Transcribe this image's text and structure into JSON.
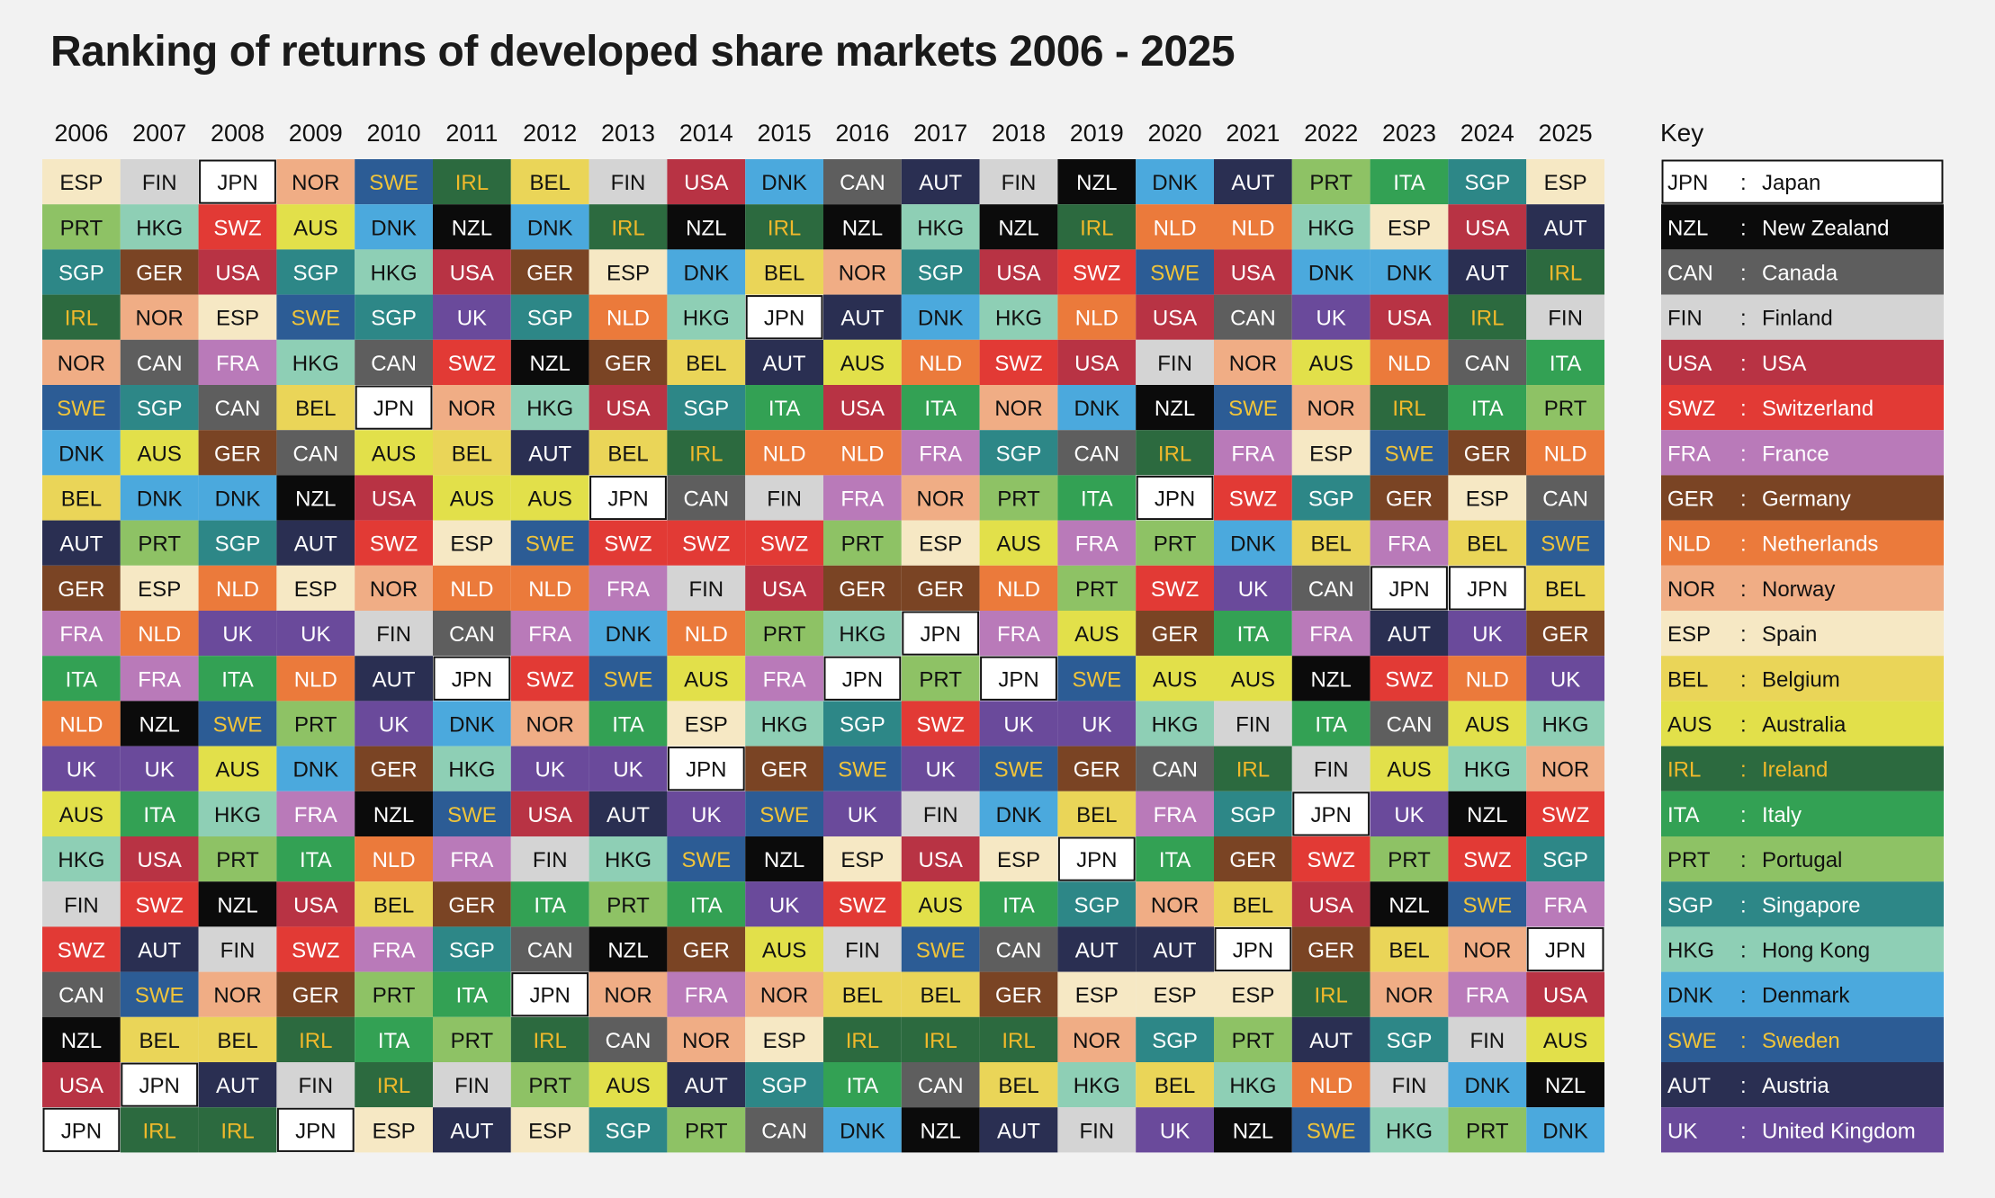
{
  "title": "Ranking of returns of developed share markets 2006 - 2025",
  "key_title": "Key",
  "chart_data": {
    "type": "table",
    "title": "Ranking of returns of developed share markets 2006 - 2025",
    "years": [
      "2006",
      "2007",
      "2008",
      "2009",
      "2010",
      "2011",
      "2012",
      "2013",
      "2014",
      "2015",
      "2016",
      "2017",
      "2018",
      "2019",
      "2020",
      "2021",
      "2022",
      "2023",
      "2024",
      "2025"
    ],
    "rankings": [
      [
        "ESP",
        "PRT",
        "SGP",
        "IRL",
        "NOR",
        "SWE",
        "DNK",
        "BEL",
        "AUT",
        "GER",
        "FRA",
        "ITA",
        "NLD",
        "UK",
        "AUS",
        "HKG",
        "FIN",
        "SWZ",
        "CAN",
        "NZL",
        "USA",
        "JPN"
      ],
      [
        "FIN",
        "HKG",
        "GER",
        "NOR",
        "CAN",
        "SGP",
        "AUS",
        "DNK",
        "PRT",
        "ESP",
        "NLD",
        "FRA",
        "NZL",
        "UK",
        "ITA",
        "USA",
        "SWZ",
        "AUT",
        "SWE",
        "BEL",
        "JPN",
        "IRL"
      ],
      [
        "JPN",
        "SWZ",
        "USA",
        "ESP",
        "FRA",
        "CAN",
        "GER",
        "DNK",
        "SGP",
        "NLD",
        "UK",
        "ITA",
        "SWE",
        "AUS",
        "HKG",
        "PRT",
        "NZL",
        "FIN",
        "NOR",
        "BEL",
        "AUT",
        "IRL"
      ],
      [
        "NOR",
        "AUS",
        "SGP",
        "SWE",
        "HKG",
        "BEL",
        "CAN",
        "NZL",
        "AUT",
        "ESP",
        "UK",
        "NLD",
        "PRT",
        "DNK",
        "FRA",
        "ITA",
        "USA",
        "SWZ",
        "GER",
        "IRL",
        "FIN",
        "JPN"
      ],
      [
        "SWE",
        "DNK",
        "HKG",
        "SGP",
        "CAN",
        "JPN",
        "AUS",
        "USA",
        "SWZ",
        "NOR",
        "FIN",
        "AUT",
        "UK",
        "GER",
        "NZL",
        "NLD",
        "BEL",
        "FRA",
        "PRT",
        "ITA",
        "IRL",
        "ESP"
      ],
      [
        "IRL",
        "NZL",
        "USA",
        "UK",
        "SWZ",
        "NOR",
        "BEL",
        "AUS",
        "ESP",
        "NLD",
        "CAN",
        "JPN",
        "DNK",
        "HKG",
        "SWE",
        "FRA",
        "GER",
        "SGP",
        "ITA",
        "PRT",
        "FIN",
        "AUT"
      ],
      [
        "BEL",
        "DNK",
        "GER",
        "SGP",
        "NZL",
        "HKG",
        "AUT",
        "AUS",
        "SWE",
        "NLD",
        "FRA",
        "SWZ",
        "NOR",
        "UK",
        "USA",
        "FIN",
        "ITA",
        "CAN",
        "JPN",
        "IRL",
        "PRT",
        "ESP"
      ],
      [
        "FIN",
        "IRL",
        "ESP",
        "NLD",
        "GER",
        "USA",
        "BEL",
        "JPN",
        "SWZ",
        "FRA",
        "DNK",
        "SWE",
        "ITA",
        "UK",
        "AUT",
        "HKG",
        "PRT",
        "NZL",
        "NOR",
        "CAN",
        "AUS",
        "SGP"
      ],
      [
        "USA",
        "NZL",
        "DNK",
        "HKG",
        "BEL",
        "SGP",
        "IRL",
        "CAN",
        "SWZ",
        "FIN",
        "NLD",
        "AUS",
        "ESP",
        "JPN",
        "UK",
        "SWE",
        "ITA",
        "GER",
        "FRA",
        "NOR",
        "AUT",
        "PRT"
      ],
      [
        "DNK",
        "IRL",
        "BEL",
        "JPN",
        "AUT",
        "ITA",
        "NLD",
        "FIN",
        "SWZ",
        "USA",
        "PRT",
        "FRA",
        "HKG",
        "GER",
        "SWE",
        "NZL",
        "UK",
        "AUS",
        "NOR",
        "ESP",
        "SGP",
        "CAN"
      ],
      [
        "CAN",
        "NZL",
        "NOR",
        "AUT",
        "AUS",
        "USA",
        "NLD",
        "FRA",
        "PRT",
        "GER",
        "HKG",
        "JPN",
        "SGP",
        "SWE",
        "UK",
        "ESP",
        "SWZ",
        "FIN",
        "BEL",
        "IRL",
        "ITA",
        "DNK"
      ],
      [
        "AUT",
        "HKG",
        "SGP",
        "DNK",
        "NLD",
        "ITA",
        "FRA",
        "NOR",
        "ESP",
        "GER",
        "JPN",
        "PRT",
        "SWZ",
        "UK",
        "FIN",
        "USA",
        "AUS",
        "SWE",
        "BEL",
        "IRL",
        "CAN",
        "NZL"
      ],
      [
        "FIN",
        "NZL",
        "USA",
        "HKG",
        "SWZ",
        "NOR",
        "SGP",
        "PRT",
        "AUS",
        "NLD",
        "FRA",
        "JPN",
        "UK",
        "SWE",
        "DNK",
        "ESP",
        "ITA",
        "CAN",
        "GER",
        "IRL",
        "BEL",
        "AUT"
      ],
      [
        "NZL",
        "IRL",
        "SWZ",
        "NLD",
        "USA",
        "DNK",
        "CAN",
        "ITA",
        "FRA",
        "PRT",
        "AUS",
        "SWE",
        "UK",
        "GER",
        "BEL",
        "JPN",
        "SGP",
        "AUT",
        "ESP",
        "NOR",
        "HKG",
        "FIN"
      ],
      [
        "DNK",
        "NLD",
        "SWE",
        "USA",
        "FIN",
        "NZL",
        "IRL",
        "JPN",
        "PRT",
        "SWZ",
        "GER",
        "AUS",
        "HKG",
        "CAN",
        "FRA",
        "ITA",
        "NOR",
        "AUT",
        "ESP",
        "SGP",
        "BEL",
        "UK"
      ],
      [
        "AUT",
        "NLD",
        "USA",
        "CAN",
        "NOR",
        "SWE",
        "FRA",
        "SWZ",
        "DNK",
        "UK",
        "ITA",
        "AUS",
        "FIN",
        "IRL",
        "SGP",
        "GER",
        "BEL",
        "JPN",
        "ESP",
        "PRT",
        "HKG",
        "NZL"
      ],
      [
        "PRT",
        "HKG",
        "DNK",
        "UK",
        "AUS",
        "NOR",
        "ESP",
        "SGP",
        "BEL",
        "CAN",
        "FRA",
        "NZL",
        "ITA",
        "FIN",
        "JPN",
        "SWZ",
        "USA",
        "GER",
        "IRL",
        "AUT",
        "NLD",
        "SWE"
      ],
      [
        "ITA",
        "ESP",
        "DNK",
        "USA",
        "NLD",
        "IRL",
        "SWE",
        "GER",
        "FRA",
        "JPN",
        "AUT",
        "SWZ",
        "CAN",
        "AUS",
        "UK",
        "PRT",
        "NZL",
        "BEL",
        "NOR",
        "SGP",
        "FIN",
        "HKG"
      ],
      [
        "SGP",
        "USA",
        "AUT",
        "IRL",
        "CAN",
        "ITA",
        "GER",
        "ESP",
        "BEL",
        "JPN",
        "UK",
        "NLD",
        "AUS",
        "HKG",
        "NZL",
        "SWZ",
        "SWE",
        "NOR",
        "FRA",
        "FIN",
        "DNK",
        "PRT"
      ],
      [
        "ESP",
        "AUT",
        "IRL",
        "FIN",
        "ITA",
        "PRT",
        "NLD",
        "CAN",
        "SWE",
        "BEL",
        "GER",
        "UK",
        "HKG",
        "NOR",
        "SWZ",
        "SGP",
        "FRA",
        "JPN",
        "USA",
        "AUS",
        "NZL",
        "DNK"
      ]
    ],
    "key": [
      {
        "code": "JPN",
        "name": "Japan"
      },
      {
        "code": "NZL",
        "name": "New Zealand"
      },
      {
        "code": "CAN",
        "name": "Canada"
      },
      {
        "code": "FIN",
        "name": "Finland"
      },
      {
        "code": "USA",
        "name": "USA"
      },
      {
        "code": "SWZ",
        "name": "Switzerland"
      },
      {
        "code": "FRA",
        "name": "France"
      },
      {
        "code": "GER",
        "name": "Germany"
      },
      {
        "code": "NLD",
        "name": "Netherlands"
      },
      {
        "code": "NOR",
        "name": "Norway"
      },
      {
        "code": "ESP",
        "name": "Spain"
      },
      {
        "code": "BEL",
        "name": "Belgium"
      },
      {
        "code": "AUS",
        "name": "Australia"
      },
      {
        "code": "IRL",
        "name": "Ireland"
      },
      {
        "code": "ITA",
        "name": "Italy"
      },
      {
        "code": "PRT",
        "name": "Portugal"
      },
      {
        "code": "SGP",
        "name": "Singapore"
      },
      {
        "code": "HKG",
        "name": "Hong Kong"
      },
      {
        "code": "DNK",
        "name": "Denmark"
      },
      {
        "code": "SWE",
        "name": "Sweden"
      },
      {
        "code": "AUT",
        "name": "Austria"
      },
      {
        "code": "UK",
        "name": "United Kingdom"
      }
    ],
    "colors": {
      "JPN": {
        "bg": "#ffffff",
        "fg": "#111111",
        "outlined": true
      },
      "NZL": {
        "bg": "#0b0b0b",
        "fg": "#ffffff"
      },
      "CAN": {
        "bg": "#5e5e5e",
        "fg": "#ffffff"
      },
      "FIN": {
        "bg": "#d4d4d4",
        "fg": "#111111"
      },
      "USA": {
        "bg": "#b83344",
        "fg": "#ffffff"
      },
      "SWZ": {
        "bg": "#e23a35",
        "fg": "#ffffff"
      },
      "FRA": {
        "bg": "#b97ab9",
        "fg": "#ffffff"
      },
      "GER": {
        "bg": "#7a4424",
        "fg": "#ffffff"
      },
      "NLD": {
        "bg": "#eb7a3b",
        "fg": "#ffffff"
      },
      "NOR": {
        "bg": "#f0ad85",
        "fg": "#111111"
      },
      "ESP": {
        "bg": "#f6e8c4",
        "fg": "#111111"
      },
      "BEL": {
        "bg": "#ead558",
        "fg": "#111111"
      },
      "AUS": {
        "bg": "#e2e04a",
        "fg": "#111111"
      },
      "IRL": {
        "bg": "#2c6a3f",
        "fg": "#f0b92b"
      },
      "ITA": {
        "bg": "#33a154",
        "fg": "#ffffff"
      },
      "PRT": {
        "bg": "#8ec265",
        "fg": "#111111"
      },
      "SGP": {
        "bg": "#2d8787",
        "fg": "#ffffff"
      },
      "HKG": {
        "bg": "#8ecfb5",
        "fg": "#111111"
      },
      "DNK": {
        "bg": "#4ba9dd",
        "fg": "#111111"
      },
      "SWE": {
        "bg": "#2c5c95",
        "fg": "#f0c43a"
      },
      "AUT": {
        "bg": "#2a2f52",
        "fg": "#ffffff"
      },
      "UK": {
        "bg": "#6a4a9b",
        "fg": "#ffffff"
      }
    }
  }
}
